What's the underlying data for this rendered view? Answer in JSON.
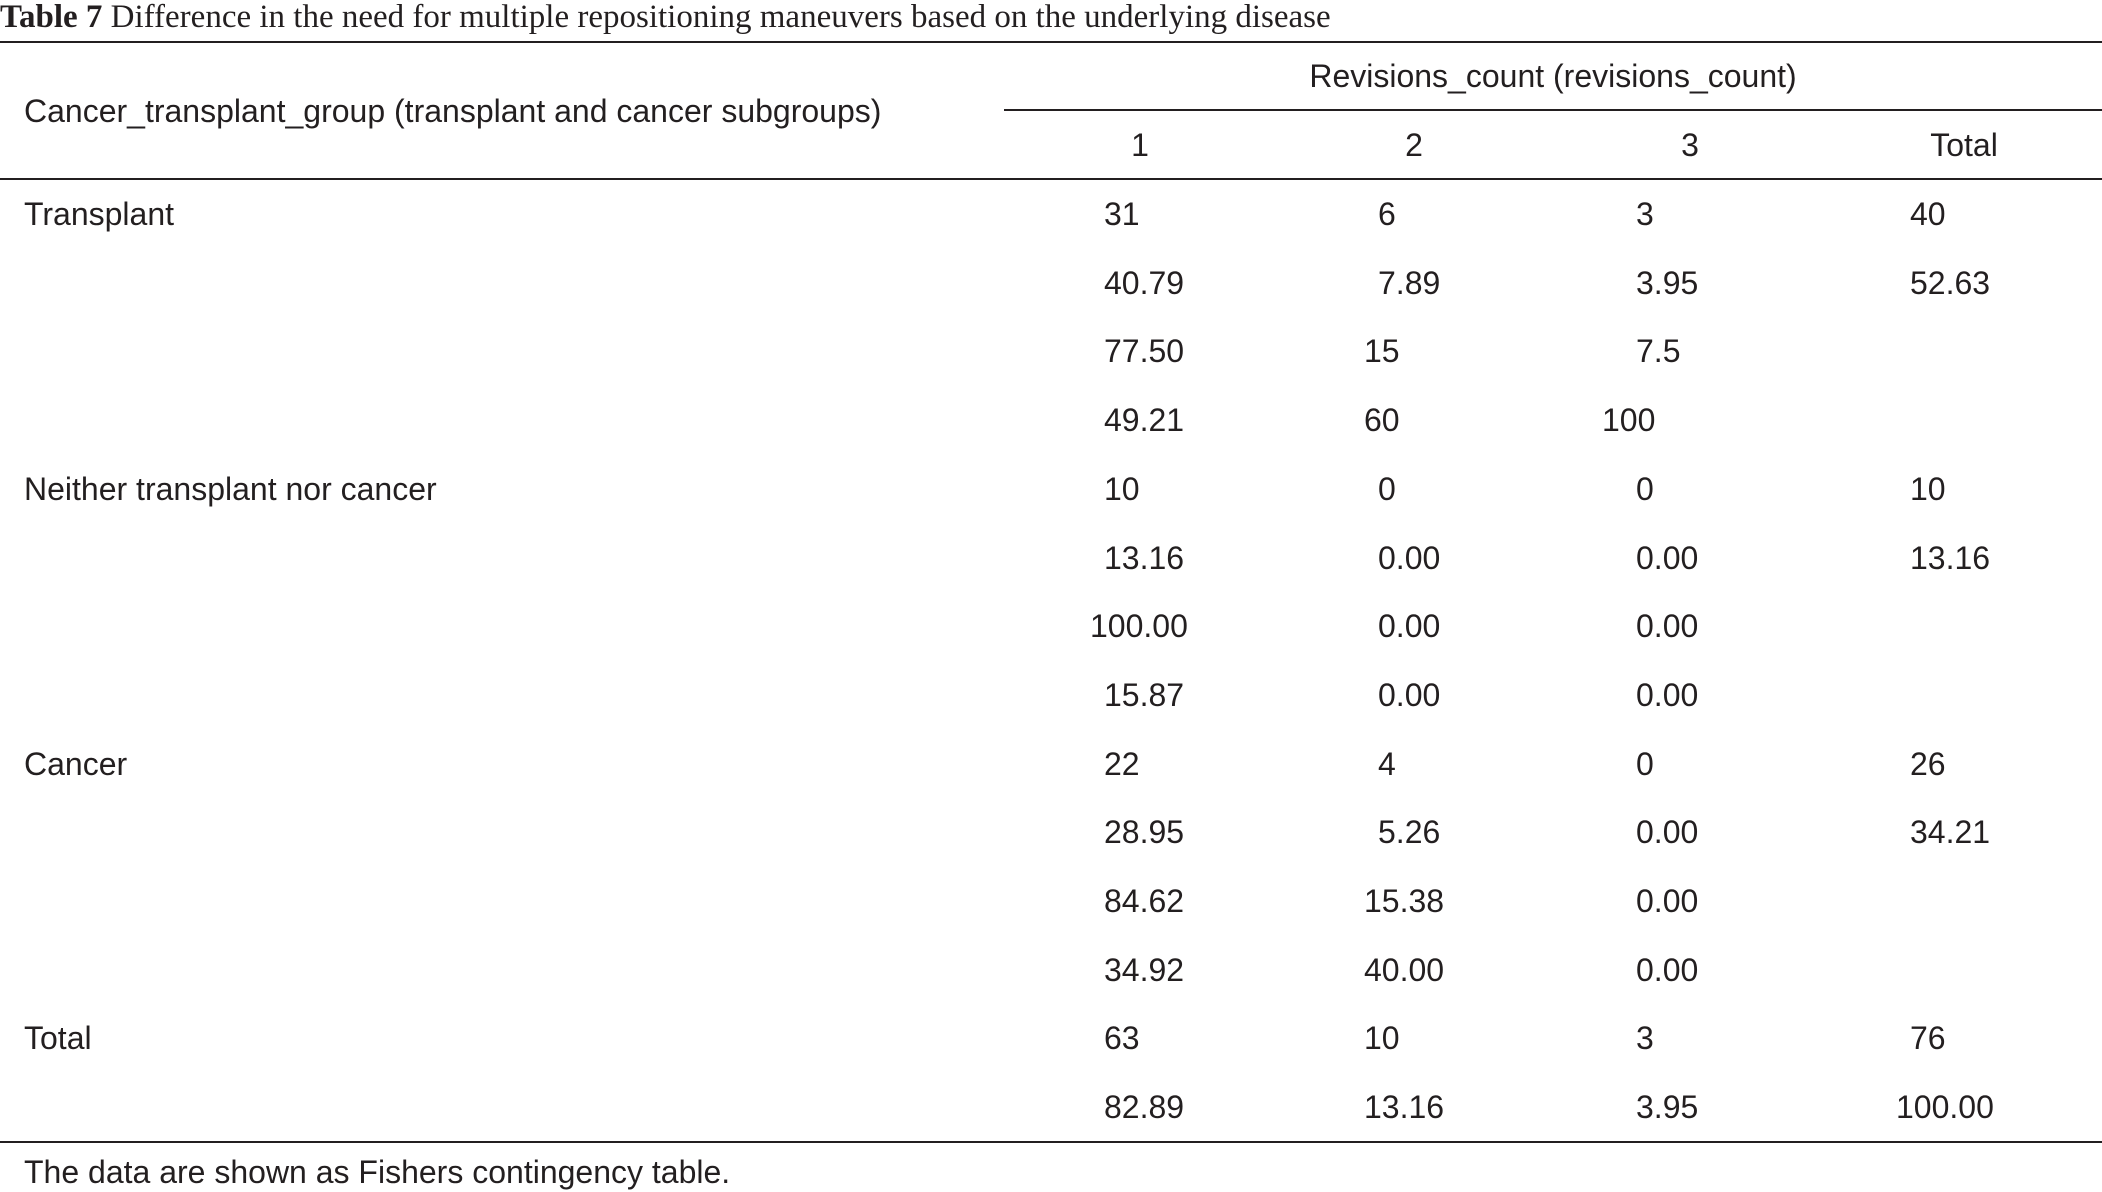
{
  "caption": {
    "label": "Table 7",
    "text": "Difference in the need for multiple repositioning maneuvers based on the underlying disease"
  },
  "header": {
    "row_header": "Cancer_transplant_group (transplant and cancer subgroups)",
    "spanner": "Revisions_count (revisions_count)",
    "columns": [
      "1",
      "2",
      "3",
      "Total"
    ]
  },
  "rows": [
    [
      "Transplant",
      "31",
      "6",
      "3",
      "40"
    ],
    [
      "",
      "40.79",
      "7.89",
      "3.95",
      "52.63"
    ],
    [
      "",
      "77.50",
      "15",
      "7.5",
      ""
    ],
    [
      "",
      "49.21",
      "60",
      "100",
      ""
    ],
    [
      "Neither transplant nor cancer",
      "10",
      "0",
      "0",
      "10"
    ],
    [
      "",
      "13.16",
      "0.00",
      "0.00",
      "13.16"
    ],
    [
      "",
      "100.00",
      "0.00",
      "0.00",
      ""
    ],
    [
      "",
      "15.87",
      "0.00",
      "0.00",
      ""
    ],
    [
      "Cancer",
      "22",
      "4",
      "0",
      "26"
    ],
    [
      "",
      "28.95",
      "5.26",
      "0.00",
      "34.21"
    ],
    [
      "",
      "84.62",
      "15.38",
      "0.00",
      ""
    ],
    [
      "",
      "34.92",
      "40.00",
      "0.00",
      ""
    ],
    [
      "Total",
      "63",
      "10",
      "3",
      "76"
    ],
    [
      "",
      "82.89",
      "13.16",
      "3.95",
      "100.00"
    ]
  ],
  "footnote": "The data are shown as Fishers contingency table."
}
